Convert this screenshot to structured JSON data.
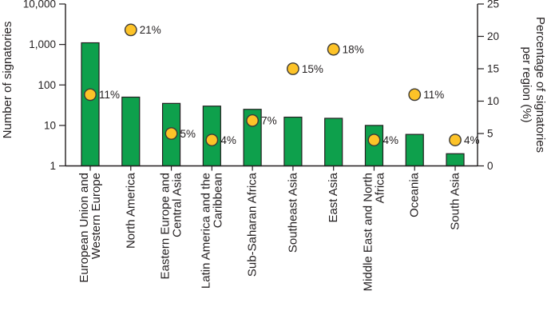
{
  "chart_data": {
    "type": "combo-bar-scatter",
    "title": "",
    "categories": [
      "European Union and Western Europe",
      "North America",
      "Eastern Europe and Central Asia",
      "Latin America and the Caribbean",
      "Sub-Saharan Africa",
      "Southeast Asia",
      "East Asia",
      "Middle East and North Africa",
      "Oceania",
      "South Asia"
    ],
    "category_label_lines": [
      [
        "European Union and",
        "Western Europe"
      ],
      [
        "North America"
      ],
      [
        "Eastern Europe and",
        "Central Asia"
      ],
      [
        "Latin America and the",
        "Caribbean"
      ],
      [
        "Sub-Saharan Africa"
      ],
      [
        "Southeast Asia"
      ],
      [
        "East Asia"
      ],
      [
        "Middle East and North",
        "Africa"
      ],
      [
        "Oceania"
      ],
      [
        "South Asia"
      ]
    ],
    "series": [
      {
        "name": "Number of signatories",
        "type": "bar",
        "axis": "left",
        "values": [
          1100,
          50,
          35,
          30,
          25,
          16,
          15,
          10,
          6,
          2
        ]
      },
      {
        "name": "Percentage of signatories per region",
        "type": "scatter",
        "axis": "right",
        "values": [
          11,
          21,
          5,
          4,
          7,
          15,
          18,
          4,
          11,
          4
        ],
        "point_labels": [
          "11%",
          "21%",
          "5%",
          "4%",
          "7%",
          "15%",
          "18%",
          "4%",
          "11%",
          "4%"
        ]
      }
    ],
    "left_axis": {
      "scale": "log",
      "label": "Number of signatories",
      "tick_labels": [
        "1",
        "10",
        "100",
        "1,000",
        "10,000"
      ],
      "tick_values": [
        1,
        10,
        100,
        1000,
        10000
      ],
      "range": [
        1,
        10000
      ]
    },
    "right_axis": {
      "scale": "linear",
      "label": "Percentage of signatories per region (%)",
      "label_lines": [
        "Percentage of signatories",
        "per region (%)"
      ],
      "tick_labels": [
        "0",
        "5",
        "10",
        "15",
        "20",
        "25"
      ],
      "tick_values": [
        0,
        5,
        10,
        15,
        20,
        25
      ],
      "range": [
        0,
        25
      ]
    },
    "grid": false,
    "legend": "none",
    "colors": {
      "bar_fill": "#0ea04c",
      "bar_stroke": "#231f20",
      "dot_fill": "#fdc328",
      "dot_stroke": "#3d3a36",
      "axis": "#231f20",
      "text": "#231f20"
    }
  }
}
